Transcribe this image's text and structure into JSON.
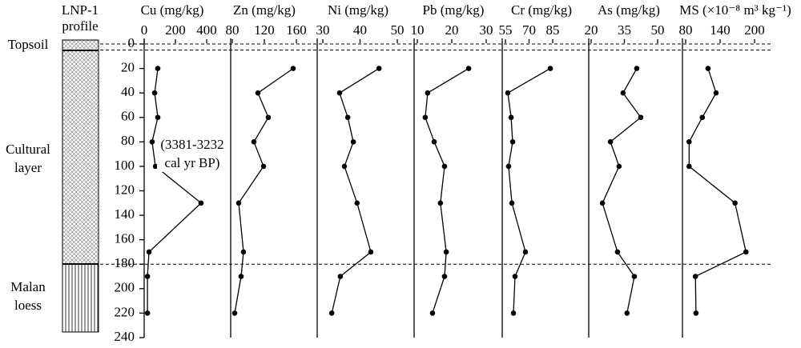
{
  "profile": {
    "title": [
      "LNP-1",
      "profile"
    ],
    "layers": [
      {
        "name": [
          "Topsoil"
        ]
      },
      {
        "name": [
          "Cultural",
          "layer"
        ]
      },
      {
        "name": [
          "Malan",
          "loess"
        ]
      }
    ],
    "boundaries": [
      0,
      5,
      180
    ]
  },
  "chart_data": [
    {
      "type": "line",
      "title": "Cu (mg/kg)",
      "y": [
        20,
        40,
        60,
        80,
        100,
        130,
        170,
        190,
        220
      ],
      "values": [
        87,
        67,
        87,
        51,
        72,
        364,
        31,
        21,
        21
      ],
      "xlim": [
        0,
        400
      ],
      "xticks": [
        0,
        200,
        400
      ],
      "ylim": [
        0,
        240
      ],
      "yticks": [
        0,
        20,
        40,
        60,
        80,
        100,
        120,
        140,
        160,
        180,
        200,
        220,
        240
      ],
      "annotation": [
        "(3381-3232",
        "cal yr BP)"
      ],
      "color": "#000000"
    },
    {
      "type": "line",
      "title": "Zn (mg/kg)",
      "y": [
        20,
        40,
        60,
        80,
        100,
        130,
        170,
        190,
        220
      ],
      "values": [
        156,
        112,
        125,
        107,
        119,
        88,
        94,
        91,
        83
      ],
      "xlim": [
        80,
        160
      ],
      "xticks": [
        80,
        120,
        160
      ],
      "color": "#000000"
    },
    {
      "type": "line",
      "title": "Ni (mg/kg)",
      "y": [
        20,
        40,
        60,
        80,
        100,
        130,
        170,
        190,
        220
      ],
      "values": [
        45.1,
        34.5,
        36.7,
        38.2,
        35.8,
        39.2,
        42.9,
        34.7,
        32.4
      ],
      "xlim": [
        30,
        50
      ],
      "xticks": [
        30,
        40,
        50
      ],
      "color": "#000000"
    },
    {
      "type": "line",
      "title": "Pb (mg/kg)",
      "y": [
        20,
        40,
        60,
        80,
        100,
        130,
        170,
        190,
        220
      ],
      "values": [
        24.9,
        13.0,
        12.3,
        14.9,
        17.9,
        16.7,
        18.4,
        17.9,
        14.4
      ],
      "xlim": [
        10,
        30
      ],
      "xticks": [
        10,
        20,
        30
      ],
      "color": "#000000"
    },
    {
      "type": "line",
      "title": "Cr (mg/kg)",
      "y": [
        20,
        40,
        60,
        80,
        100,
        130,
        170,
        190,
        220
      ],
      "values": [
        83.5,
        56.5,
        58.6,
        59.6,
        57.0,
        59.1,
        67.7,
        61.1,
        60.1
      ],
      "xlim": [
        55,
        85
      ],
      "xticks": [
        55,
        70,
        85
      ],
      "color": "#000000"
    },
    {
      "type": "line",
      "title": "As (mg/kg)",
      "y": [
        20,
        40,
        60,
        80,
        100,
        130,
        170,
        190,
        220
      ],
      "values": [
        40.6,
        34.4,
        42.4,
        28.7,
        32.6,
        25.1,
        31.9,
        39.5,
        36.2
      ],
      "xlim": [
        20,
        50
      ],
      "xticks": [
        20,
        35,
        50
      ],
      "color": "#000000"
    },
    {
      "type": "line",
      "title": "MS (×10⁻⁸ m³ kg⁻¹)",
      "y": [
        20,
        40,
        60,
        80,
        100,
        130,
        170,
        190,
        220
      ],
      "values": [
        119,
        133,
        109,
        86,
        86,
        166,
        185,
        97,
        98
      ],
      "xlim": [
        80,
        200
      ],
      "xticks": [
        80,
        140,
        200
      ],
      "color": "#000000"
    }
  ]
}
